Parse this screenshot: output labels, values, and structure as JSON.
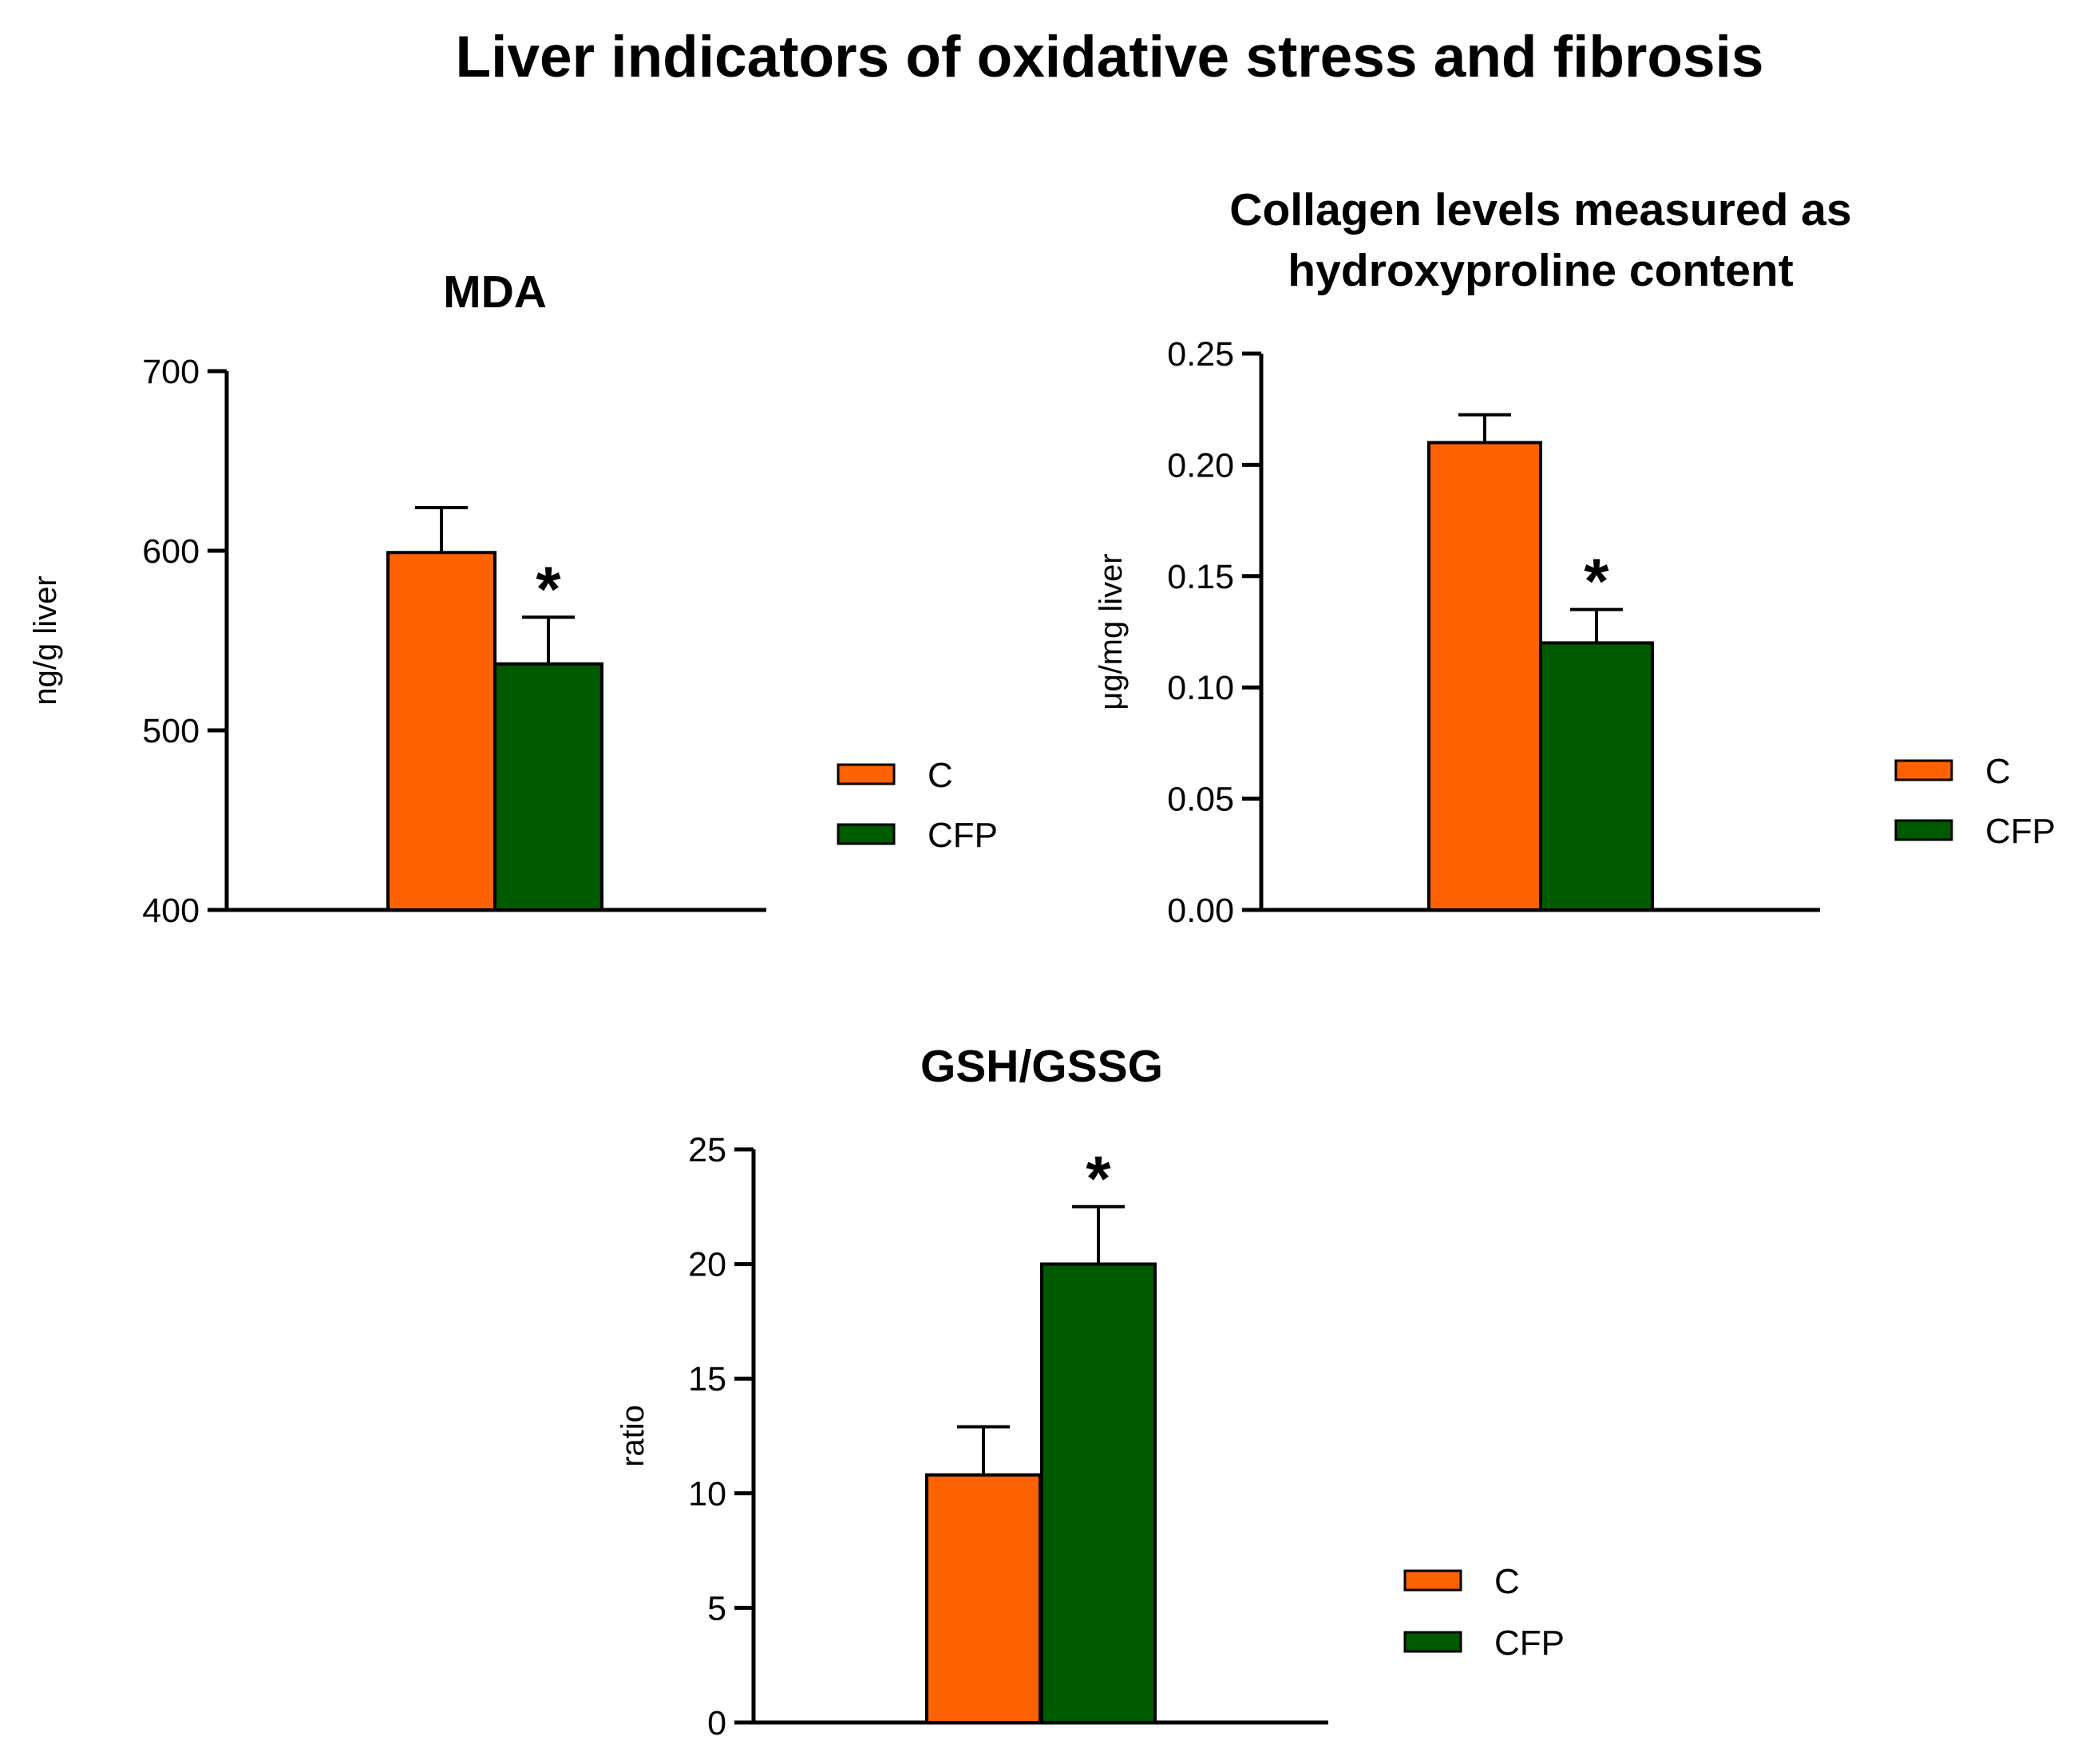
{
  "figure": {
    "title": "Liver indicators of oxidative stress and fibrosis"
  },
  "colors": {
    "C": "#ff6200",
    "CFP": "#005a00",
    "axis": "#000000"
  },
  "chart_data": [
    {
      "type": "bar",
      "title_lines": [
        "MDA"
      ],
      "ylabel": "ng/g liver",
      "ylim": [
        400,
        700
      ],
      "yticks": [
        400,
        500,
        600,
        700
      ],
      "ytick_labels": [
        "400",
        "500",
        "600",
        "700"
      ],
      "series": [
        {
          "name": "C",
          "value": 599,
          "error": 25
        },
        {
          "name": "CFP",
          "value": 537,
          "error": 26,
          "significance": "*"
        }
      ],
      "legend": [
        "C",
        "CFP"
      ]
    },
    {
      "type": "bar",
      "title_lines": [
        "Collagen levels measured as",
        "hydroxyproline content"
      ],
      "ylabel": "μg/mg liver",
      "ylim": [
        0,
        0.25
      ],
      "yticks": [
        0,
        0.05,
        0.1,
        0.15,
        0.2,
        0.25
      ],
      "ytick_labels": [
        "0.00",
        "0.05",
        "0.10",
        "0.15",
        "0.20",
        "0.25"
      ],
      "series": [
        {
          "name": "C",
          "value": 0.21,
          "error": 0.0125
        },
        {
          "name": "CFP",
          "value": 0.12,
          "error": 0.015,
          "significance": "*"
        }
      ],
      "legend": [
        "C",
        "CFP"
      ]
    },
    {
      "type": "bar",
      "title_lines": [
        "GSH/GSSG"
      ],
      "ylabel": "ratio",
      "ylim": [
        0,
        25
      ],
      "yticks": [
        0,
        5,
        10,
        15,
        20,
        25
      ],
      "ytick_labels": [
        "0",
        "5",
        "10",
        "15",
        "20",
        "25"
      ],
      "series": [
        {
          "name": "C",
          "value": 10.8,
          "error": 2.1
        },
        {
          "name": "CFP",
          "value": 20.0,
          "error": 2.5,
          "significance": "*"
        }
      ],
      "legend": [
        "C",
        "CFP"
      ]
    }
  ]
}
